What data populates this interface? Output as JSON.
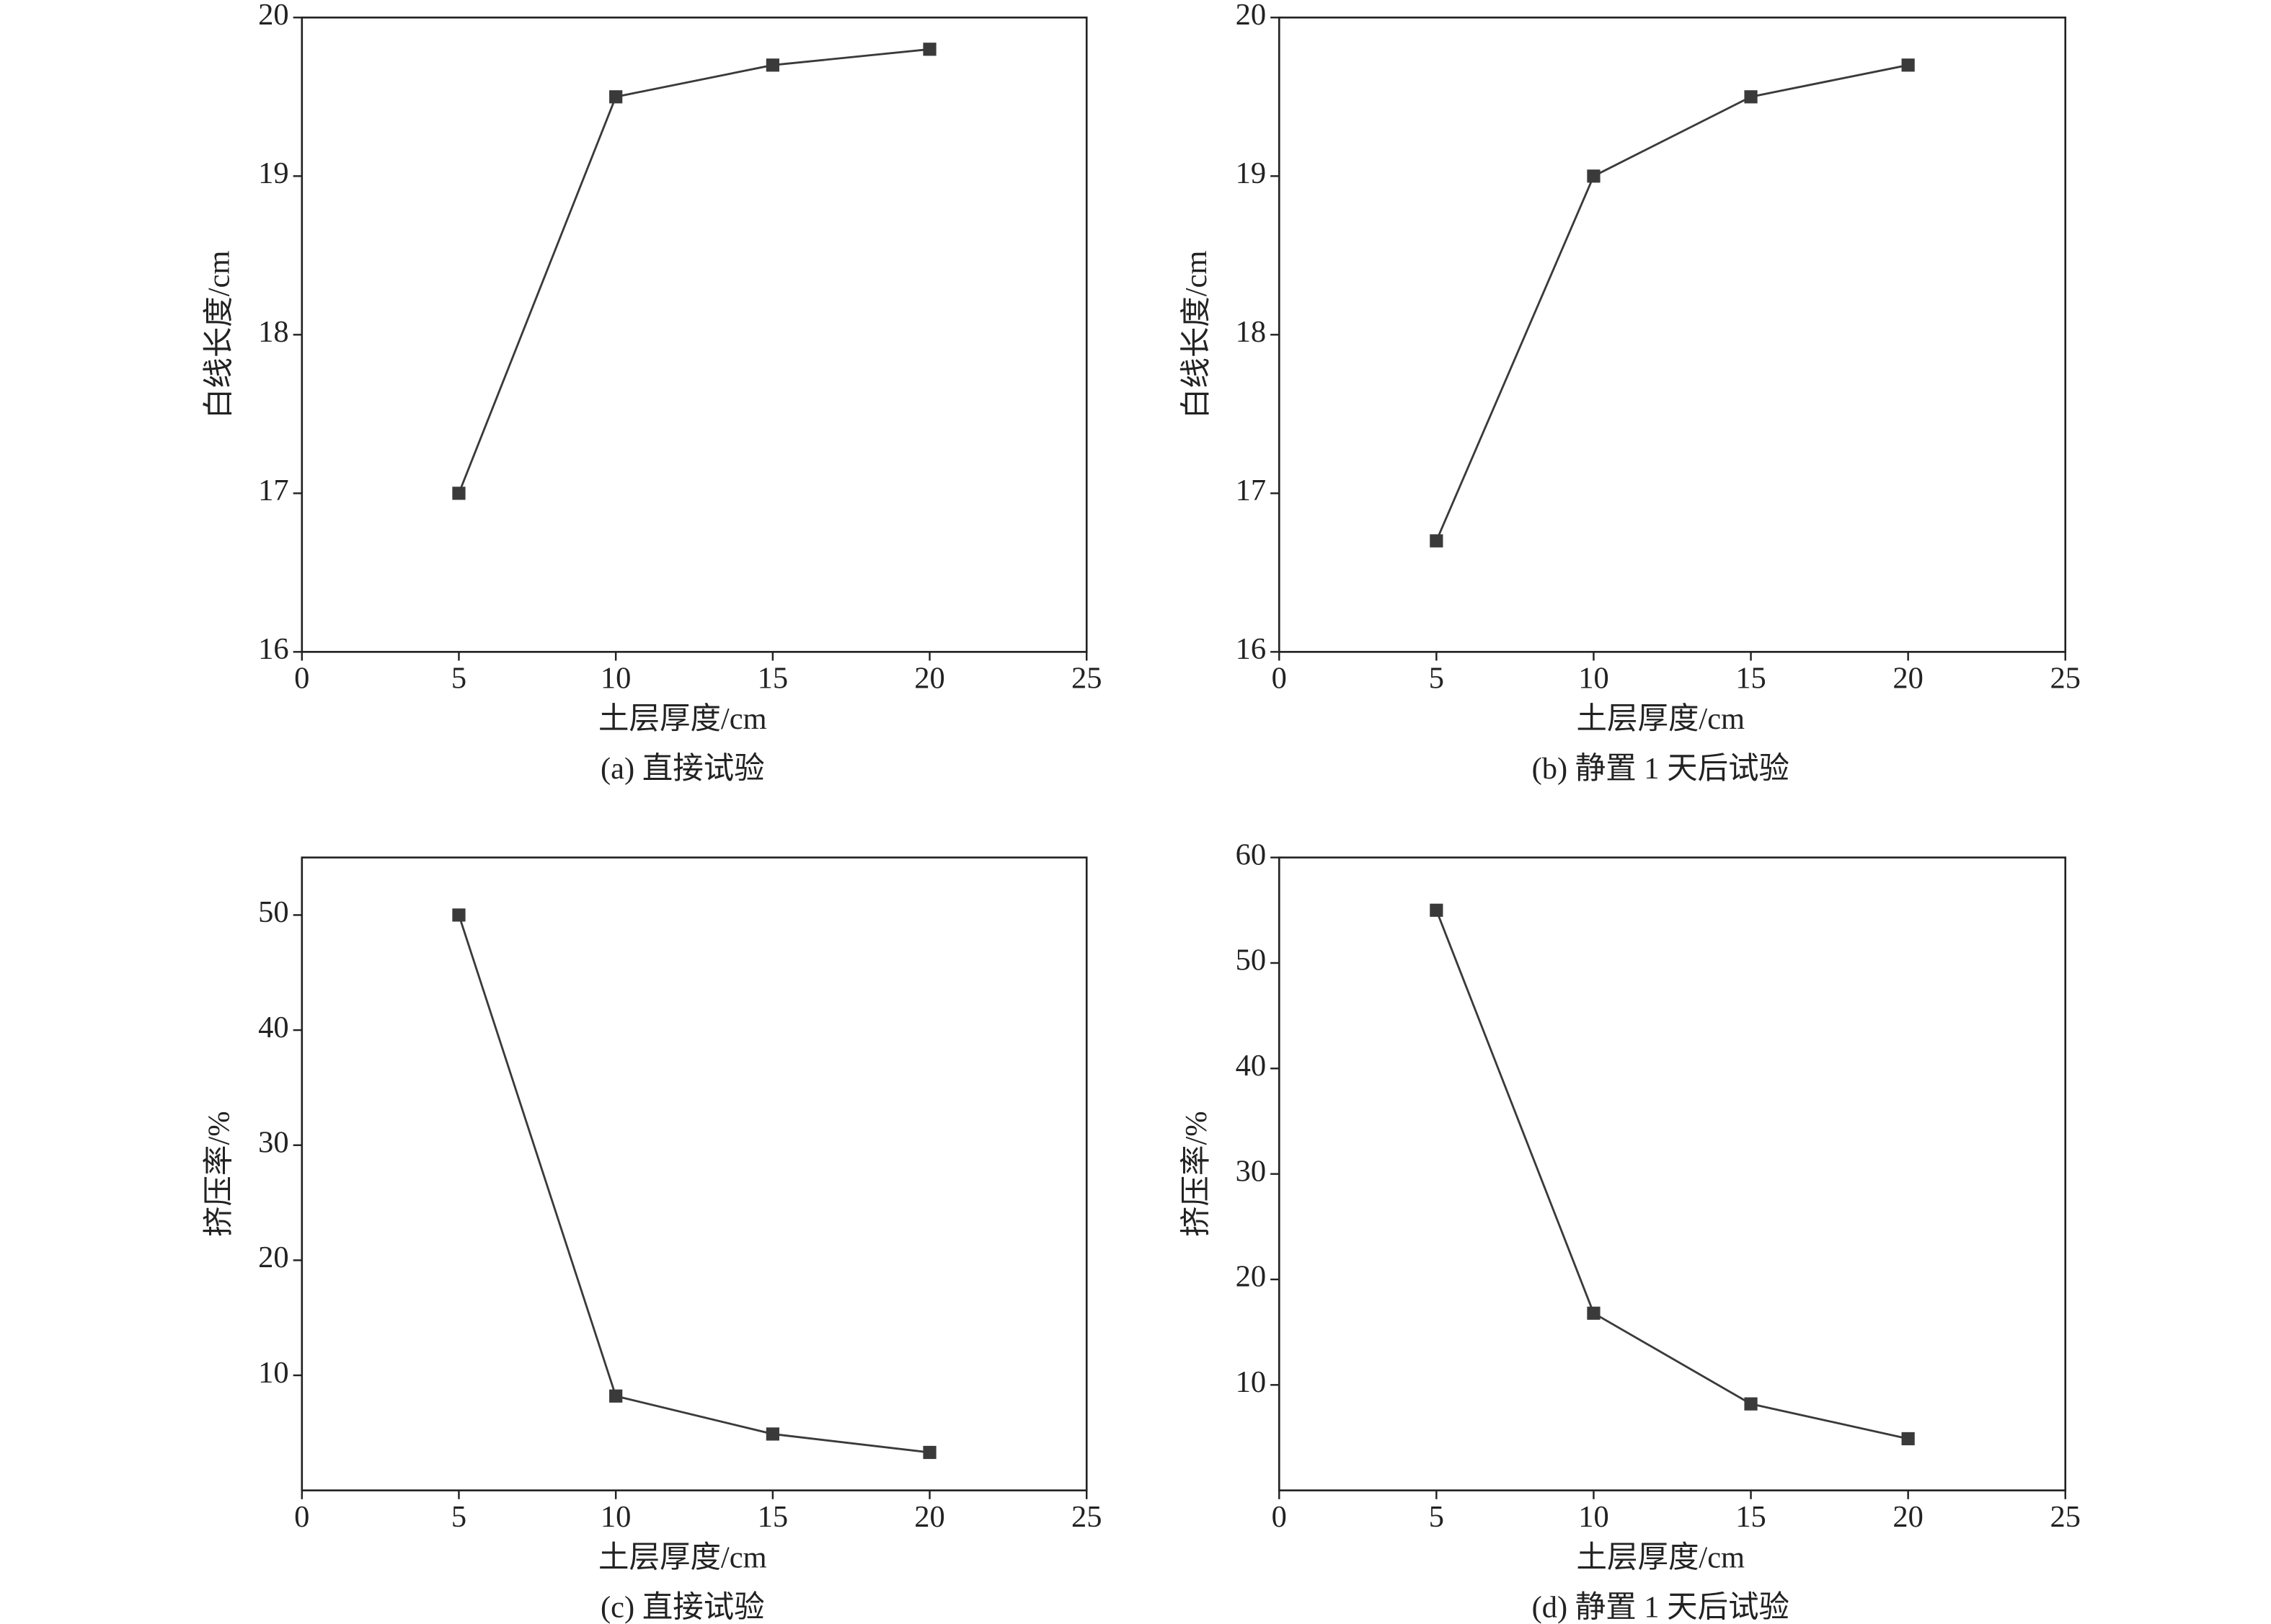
{
  "chart_data": [
    {
      "type": "line",
      "x": [
        5,
        10,
        15,
        20
      ],
      "values": [
        17,
        19.5,
        19.7,
        19.8
      ],
      "color": "#3a3a3a",
      "marker": "square",
      "xlim": [
        0,
        25
      ],
      "xticks": [
        0,
        5,
        10,
        15,
        20,
        25
      ],
      "ylim": [
        16,
        20
      ],
      "yticks": [
        16,
        17,
        18,
        19,
        20
      ],
      "xlabel": "土层厚度/cm",
      "ylabel": "白线长度/cm",
      "caption": "(a) 直接试验"
    },
    {
      "type": "line",
      "x": [
        5,
        10,
        15,
        20
      ],
      "values": [
        16.7,
        19.0,
        19.5,
        19.7
      ],
      "color": "#3a3a3a",
      "marker": "square",
      "xlim": [
        0,
        25
      ],
      "xticks": [
        0,
        5,
        10,
        15,
        20,
        25
      ],
      "ylim": [
        16,
        20
      ],
      "yticks": [
        16,
        17,
        18,
        19,
        20
      ],
      "xlabel": "土层厚度/cm",
      "ylabel": "白线长度/cm",
      "caption": "(b) 静置 1 天后试验"
    },
    {
      "type": "line",
      "x": [
        5,
        10,
        15,
        20
      ],
      "values": [
        50,
        8.2,
        4.9,
        3.3
      ],
      "color": "#3a3a3a",
      "marker": "square",
      "xlim": [
        0,
        25
      ],
      "xticks": [
        0,
        5,
        10,
        15,
        20,
        25
      ],
      "ylim": [
        0,
        55
      ],
      "yticks": [
        10,
        20,
        30,
        40,
        50
      ],
      "xlabel": "土层厚度/cm",
      "ylabel": "挤压率/%",
      "caption": "(c) 直接试验"
    },
    {
      "type": "line",
      "x": [
        5,
        10,
        15,
        20
      ],
      "values": [
        55,
        16.8,
        8.2,
        4.9
      ],
      "color": "#3a3a3a",
      "marker": "square",
      "xlim": [
        0,
        25
      ],
      "xticks": [
        0,
        5,
        10,
        15,
        20,
        25
      ],
      "ylim": [
        0,
        60
      ],
      "yticks": [
        10,
        20,
        30,
        40,
        50,
        60
      ],
      "xlabel": "土层厚度/cm",
      "ylabel": "挤压率/%",
      "caption": "(d) 静置 1 天后试验"
    }
  ]
}
